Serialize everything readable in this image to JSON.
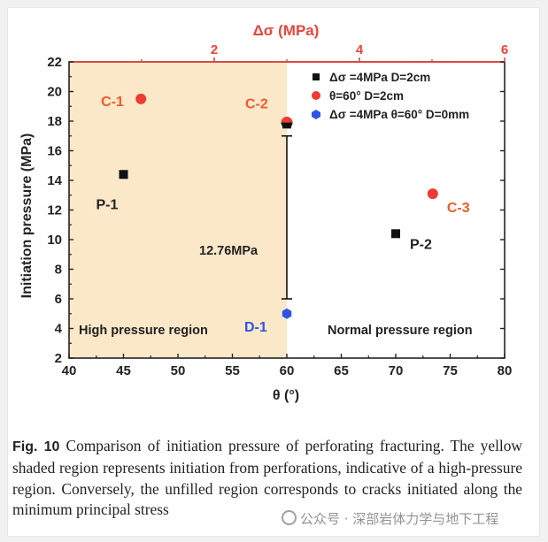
{
  "chart_data": {
    "type": "scatter",
    "xlabel": "θ (°)",
    "ylabel": "Initiation pressure (MPa)",
    "top_xlabel": "Δσ (MPa)",
    "xlim": [
      40,
      80
    ],
    "ylim": [
      2,
      22
    ],
    "top_xlim": [
      0,
      6
    ],
    "x_ticks": [
      40,
      45,
      50,
      55,
      60,
      65,
      70,
      75,
      80
    ],
    "y_ticks": [
      2,
      4,
      6,
      8,
      10,
      12,
      14,
      16,
      18,
      20,
      22
    ],
    "top_ticks": [
      2,
      4,
      6
    ],
    "shaded_region": {
      "x_from": 40,
      "x_to": 60,
      "label": "High pressure region",
      "color": "#fbe8c8"
    },
    "normal_region_label": "Normal pressure region",
    "series": [
      {
        "name": "Δσ =4MPa  D=2cm",
        "color": "#111111",
        "marker": "square",
        "points": [
          {
            "label": "P-1",
            "x": 45,
            "y": 14.4
          },
          {
            "label": "C-2",
            "x": 60,
            "y": 17.8
          },
          {
            "label": "P-2",
            "x": 70,
            "y": 10.4
          }
        ]
      },
      {
        "name": "θ=60°  D=2cm",
        "color": "#ee3b33",
        "marker": "circle",
        "points": [
          {
            "label": "C-1",
            "x": 46.6,
            "y": 19.5
          },
          {
            "label": "C-2",
            "x": 60,
            "y": 17.9
          },
          {
            "label": "C-3",
            "x": 73.4,
            "y": 13.1
          }
        ]
      },
      {
        "name": "Δσ =4MPa θ=60° D=0mm",
        "color": "#2f55e6",
        "marker": "hexagon",
        "points": [
          {
            "label": "D-1",
            "x": 60,
            "y": 5.0
          }
        ]
      }
    ],
    "difference_annotation": {
      "text": "12.76MPa",
      "x": 60,
      "y_from": 17.0,
      "y_to": 6.0
    },
    "legend_position": "top-right"
  },
  "caption": {
    "fig_label": "Fig. 10",
    "text": "Comparison of initiation pressure of perforating fracturing. The yellow shaded region represents initiation from perforations, indicative of a high-pressure region. Conversely, the unfilled region corresponds to cracks initiated along the minimum principal stress"
  },
  "watermark": "公众号 · 深部岩体力学与地下工程"
}
